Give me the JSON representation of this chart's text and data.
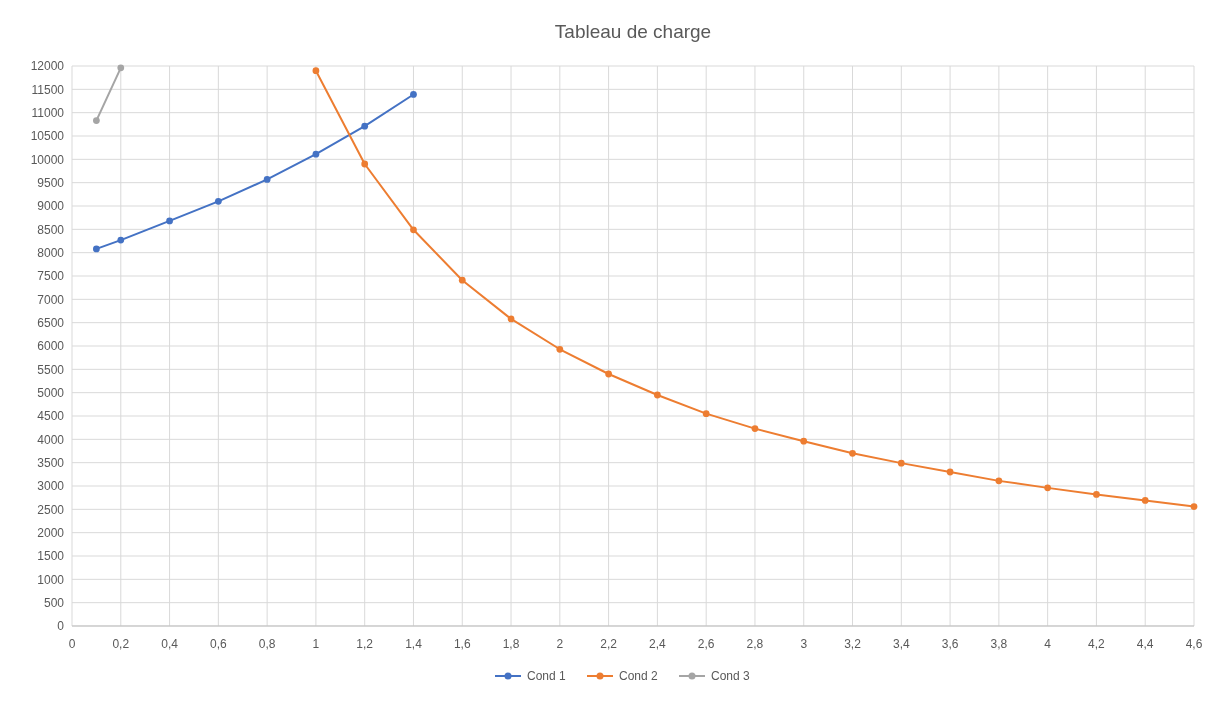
{
  "chart_data": {
    "type": "line",
    "title": "Tableau de charge",
    "xlim": [
      0,
      4.6
    ],
    "ylim": [
      0,
      12000
    ],
    "xticks": [
      0,
      {
        "value": 0.2,
        "label": "0,2"
      },
      {
        "value": 0.4,
        "label": "0,4"
      },
      {
        "value": 0.6,
        "label": "0,6"
      },
      {
        "value": 0.8,
        "label": "0,8"
      },
      1,
      {
        "value": 1.2,
        "label": "1,2"
      },
      {
        "value": 1.4,
        "label": "1,4"
      },
      {
        "value": 1.6,
        "label": "1,6"
      },
      {
        "value": 1.8,
        "label": "1,8"
      },
      2,
      {
        "value": 2.2,
        "label": "2,2"
      },
      {
        "value": 2.4,
        "label": "2,4"
      },
      {
        "value": 2.6,
        "label": "2,6"
      },
      {
        "value": 2.8,
        "label": "2,8"
      },
      3,
      {
        "value": 3.2,
        "label": "3,2"
      },
      {
        "value": 3.4,
        "label": "3,4"
      },
      {
        "value": 3.6,
        "label": "3,6"
      },
      {
        "value": 3.8,
        "label": "3,8"
      },
      4,
      {
        "value": 4.2,
        "label": "4,2"
      },
      {
        "value": 4.4,
        "label": "4,4"
      },
      {
        "value": 4.6,
        "label": "4,6"
      }
    ],
    "yticks": [
      0,
      500,
      1000,
      1500,
      2000,
      2500,
      3000,
      3500,
      4000,
      4500,
      5000,
      5500,
      6000,
      6500,
      7000,
      7500,
      8000,
      8500,
      9000,
      9500,
      10000,
      10500,
      11000,
      11500,
      12000
    ],
    "grid": true,
    "legend": "bottom",
    "marker": "circle",
    "line_style": "solid",
    "series": [
      {
        "name": "Cond 1",
        "color": "#4472c4",
        "x": [
          0.1,
          0.2,
          0.4,
          0.6,
          0.8,
          1,
          1.2,
          1.4
        ],
        "values": [
          8080,
          8270,
          8680,
          9100,
          9570,
          10110,
          10710,
          11390
        ]
      },
      {
        "name": "Cond 2",
        "color": "#ed7d31",
        "x": [
          1,
          1.2,
          1.4,
          1.6,
          1.8,
          2,
          2.2,
          2.4,
          2.6,
          2.8,
          3,
          3.2,
          3.4,
          3.6,
          3.8,
          4,
          4.2,
          4.4,
          4.6
        ],
        "values": [
          11900,
          9900,
          8490,
          7410,
          6580,
          5930,
          5400,
          4950,
          4550,
          4230,
          3960,
          3700,
          3490,
          3300,
          3110,
          2960,
          2820,
          2690,
          2560
        ]
      },
      {
        "name": "Cond 3",
        "color": "#a5a5a5",
        "x": [
          0.1,
          0.2
        ],
        "values": [
          10830,
          11960
        ]
      }
    ]
  }
}
